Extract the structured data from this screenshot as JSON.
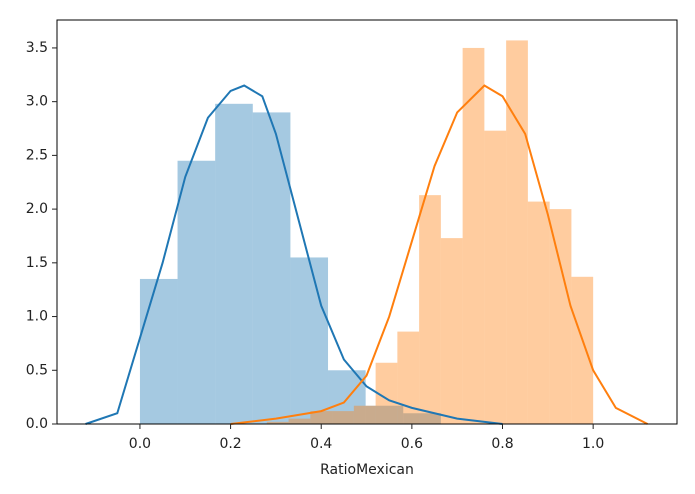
{
  "chart_data": {
    "type": "histogram",
    "xlabel": "RatioMexican",
    "xlim": [
      -0.183,
      1.185
    ],
    "ylim": [
      0,
      3.76
    ],
    "xticks": [
      {
        "value": 0,
        "label": "0.0"
      },
      0.2,
      0.4,
      0.6,
      0.8,
      {
        "value": 1,
        "label": "1.0"
      }
    ],
    "yticks": [
      {
        "value": 0,
        "label": "0.0"
      },
      0.5,
      {
        "value": 1,
        "label": "1.0"
      },
      1.5,
      {
        "value": 2,
        "label": "2.0"
      },
      2.5,
      {
        "value": 3,
        "label": "3.0"
      },
      3.5
    ],
    "grid": false,
    "series": [
      {
        "color": "#1f77b4",
        "bins": [
          0.0,
          0.083,
          0.166,
          0.249,
          0.332,
          0.415,
          0.498,
          0.581,
          0.664
        ],
        "values": [
          1.35,
          2.45,
          2.98,
          2.9,
          1.55,
          0.5,
          0.17,
          0.1
        ],
        "kde_x": [
          -0.12,
          -0.05,
          0.0,
          0.05,
          0.1,
          0.15,
          0.2,
          0.23,
          0.27,
          0.3,
          0.35,
          0.4,
          0.45,
          0.5,
          0.55,
          0.6,
          0.65,
          0.7,
          0.8
        ],
        "kde_y": [
          0.0,
          0.1,
          0.8,
          1.5,
          2.3,
          2.85,
          3.1,
          3.15,
          3.05,
          2.7,
          1.9,
          1.1,
          0.6,
          0.35,
          0.22,
          0.15,
          0.1,
          0.05,
          0.0
        ]
      },
      {
        "color": "#ff7f0e",
        "bins": [
          0.232,
          0.28,
          0.328,
          0.376,
          0.424,
          0.472,
          0.52,
          0.568,
          0.616,
          0.664,
          0.712,
          0.76,
          0.808,
          0.856,
          0.904,
          0.952,
          1.0
        ],
        "values": [
          0.0,
          0.02,
          0.05,
          0.12,
          0.12,
          0.17,
          0.57,
          0.86,
          2.13,
          1.73,
          3.5,
          2.73,
          3.57,
          2.07,
          2.0,
          1.37
        ],
        "kde_x": [
          0.2,
          0.3,
          0.4,
          0.45,
          0.5,
          0.55,
          0.6,
          0.65,
          0.7,
          0.76,
          0.8,
          0.85,
          0.9,
          0.95,
          1.0,
          1.05,
          1.12
        ],
        "kde_y": [
          0.0,
          0.05,
          0.12,
          0.2,
          0.45,
          1.0,
          1.7,
          2.4,
          2.9,
          3.15,
          3.05,
          2.7,
          1.95,
          1.1,
          0.5,
          0.15,
          0.0
        ]
      }
    ]
  }
}
